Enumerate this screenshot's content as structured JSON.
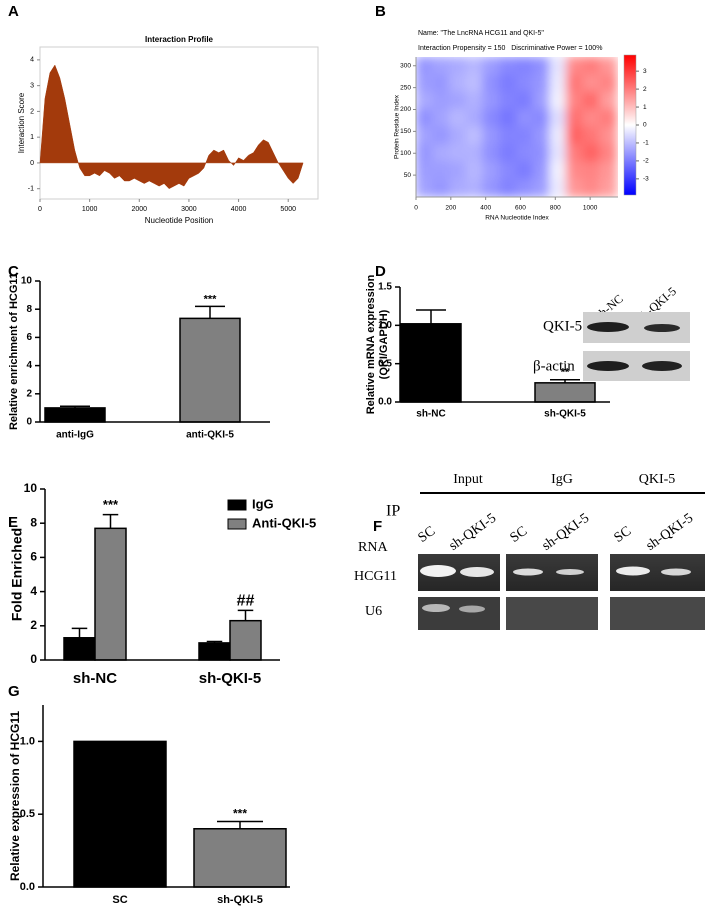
{
  "chart_data": [
    {
      "label": "A",
      "type": "area",
      "title": "Interaction Profile",
      "xlabel": "Nucleotide Position",
      "ylabel": "Interaction Score",
      "x": [
        0,
        100,
        200,
        300,
        400,
        500,
        600,
        700,
        800,
        900,
        1000,
        1100,
        1200,
        1300,
        1400,
        1500,
        1600,
        1700,
        1800,
        1900,
        2000,
        2100,
        2200,
        2300,
        2400,
        2500,
        2600,
        2700,
        2800,
        2900,
        3000,
        3100,
        3200,
        3300,
        3400,
        3500,
        3600,
        3700,
        3800,
        3900,
        4000,
        4100,
        4200,
        4300,
        4400,
        4500,
        4600,
        4700,
        4800,
        4900,
        5000,
        5100,
        5200,
        5300
      ],
      "values": [
        0,
        2.5,
        3.5,
        3.8,
        3.3,
        2.5,
        1.5,
        0.5,
        -0.2,
        -0.5,
        -0.5,
        -0.4,
        -0.5,
        -0.3,
        -0.4,
        -0.6,
        -0.5,
        -0.7,
        -0.7,
        -0.6,
        -0.7,
        -0.8,
        -0.7,
        -0.8,
        -0.9,
        -0.8,
        -1.0,
        -0.9,
        -0.8,
        -0.9,
        -0.6,
        -0.5,
        -0.4,
        -0.2,
        0.3,
        0.5,
        0.4,
        0.5,
        0.1,
        -0.1,
        0.2,
        0.1,
        0.3,
        0.4,
        0.7,
        0.9,
        0.8,
        0.4,
        0.0,
        -0.3,
        -0.6,
        -0.8,
        -0.6,
        0.0
      ],
      "color": "#a33a0c",
      "xlim": [
        0,
        5600
      ],
      "ylim": [
        -1.4,
        4.5
      ],
      "xticks": [
        0,
        1000,
        2000,
        3000,
        4000,
        5000
      ],
      "yticks": [
        -1,
        0,
        1,
        2,
        3,
        4
      ]
    },
    {
      "label": "B",
      "type": "heatmap",
      "title": "Name: \"The LncRNA HCG11 and QKI-5\"",
      "subtitle": "Interaction Propensity = 150   Discriminative Power = 100%",
      "xlabel": "RNA Nucleotide Index",
      "ylabel": "Protein Residue Index",
      "x": [
        48,
        144,
        240,
        336,
        432,
        528,
        624,
        720,
        816,
        912,
        1008,
        1104
      ],
      "y": [
        300,
        260,
        220,
        180,
        140,
        100,
        60,
        20
      ],
      "values": [
        [
          -1.6,
          -1.4,
          -1.3,
          -1.1,
          -1.5,
          -1.8,
          -1.9,
          -1.7,
          -0.4,
          1.8,
          2.0,
          1.6
        ],
        [
          -1.5,
          -1.6,
          -1.2,
          -1.0,
          -1.7,
          -2.0,
          -1.8,
          -1.6,
          -0.3,
          2.1,
          1.7,
          1.9
        ],
        [
          -1.3,
          -1.5,
          -1.4,
          -1.2,
          -1.6,
          -1.9,
          -2.0,
          -1.5,
          -0.2,
          1.9,
          2.3,
          1.5
        ],
        [
          -1.7,
          -1.4,
          -1.1,
          -1.3,
          -1.8,
          -2.1,
          -1.7,
          -1.8,
          -0.5,
          2.2,
          1.8,
          2.0
        ],
        [
          -1.4,
          -1.6,
          -1.3,
          -1.0,
          -1.6,
          -1.9,
          -1.9,
          -1.6,
          -0.3,
          2.4,
          2.1,
          1.7
        ],
        [
          -1.6,
          -1.3,
          -1.2,
          -1.2,
          -1.7,
          -2.0,
          -1.8,
          -1.7,
          -0.4,
          2.0,
          2.4,
          1.9
        ],
        [
          -1.5,
          -1.5,
          -1.4,
          -1.1,
          -1.5,
          -1.8,
          -2.0,
          -1.6,
          -0.2,
          1.8,
          1.9,
          1.6
        ],
        [
          -1.4,
          -1.6,
          -1.3,
          -1.2,
          -1.6,
          -1.9,
          -1.7,
          -1.5,
          -0.3,
          1.6,
          1.8,
          1.5
        ]
      ],
      "xlim": [
        0,
        1160
      ],
      "ylim": [
        0,
        320
      ],
      "xticks": [
        0,
        200,
        400,
        600,
        800,
        1000
      ],
      "yticks": [
        50,
        100,
        150,
        200,
        250,
        300
      ],
      "colorbar": {
        "lim": [
          -3.9,
          3.9
        ],
        "ticks": [
          3,
          2,
          1,
          0,
          -1,
          -2,
          -3
        ],
        "colors": [
          "#0000ff",
          "#ffffff",
          "#ff0000"
        ]
      }
    },
    {
      "label": "C",
      "type": "bar",
      "ylabel": "Relative enrichment of HCG11",
      "categories": [
        "anti-IgG",
        "anti-QKI-5"
      ],
      "values": [
        1.0,
        7.35
      ],
      "errors": [
        0.12,
        0.85
      ],
      "colors": [
        "#000000",
        "#808080"
      ],
      "significance": [
        null,
        "***"
      ],
      "ylim": [
        0,
        10
      ],
      "yticks": [
        0,
        2,
        4,
        6,
        8,
        10
      ]
    },
    {
      "label": "D",
      "type": "bar",
      "ylabel": [
        "Relative mRNA expression",
        "(QKI/GAPDH)"
      ],
      "categories": [
        "sh-NC",
        "sh-QKI-5"
      ],
      "values": [
        1.02,
        0.25
      ],
      "errors": [
        0.18,
        0.04
      ],
      "colors": [
        "#000000",
        "#808080"
      ],
      "significance": [
        null,
        "**"
      ],
      "ylim": [
        0,
        1.5
      ],
      "yticks": [
        {
          "value": 0,
          "label": "0.0"
        },
        0.5,
        {
          "value": 1,
          "label": "1.0"
        },
        1.5
      ]
    },
    {
      "label": "E",
      "type": "grouped_bar",
      "ylabel": "Fold Enriched",
      "categories": [
        "sh-NC",
        "sh-QKI-5"
      ],
      "series": [
        {
          "name": "IgG",
          "color": "#000000",
          "values": [
            1.3,
            1.0
          ],
          "errors": [
            0.55,
            0.08
          ]
        },
        {
          "name": "Anti-QKI-5",
          "color": "#808080",
          "values": [
            7.7,
            2.3
          ],
          "errors": [
            0.8,
            0.6
          ],
          "significance": [
            "***",
            "##"
          ]
        }
      ],
      "ylim": [
        0,
        10
      ],
      "yticks": [
        0,
        2,
        4,
        6,
        8,
        10
      ]
    },
    {
      "label": "G",
      "type": "bar",
      "ylabel": "Relative expression of HCG11",
      "categories": [
        "SC",
        "sh-QKI-5"
      ],
      "values": [
        1.0,
        0.4
      ],
      "errors": [
        null,
        0.05
      ],
      "colors": [
        "#000000",
        "#808080"
      ],
      "significance": [
        null,
        "***"
      ],
      "ylim": [
        0,
        1.25
      ],
      "yticks": [
        {
          "value": 0,
          "label": "0.0"
        },
        0.5,
        {
          "value": 1,
          "label": "1.0"
        }
      ]
    }
  ],
  "blot": {
    "lanes": [
      "sh-NC",
      "sh-QKI-5"
    ],
    "rows": [
      "QKI-5",
      "β-actin"
    ]
  },
  "gel": {
    "label": "F",
    "ip_label": "IP",
    "groups": [
      "Input",
      "IgG",
      "QKI-5"
    ],
    "lanes": [
      "SC",
      "sh-QKI-5"
    ],
    "row_header": "RNA",
    "rows": [
      "HCG11",
      "U6"
    ]
  }
}
